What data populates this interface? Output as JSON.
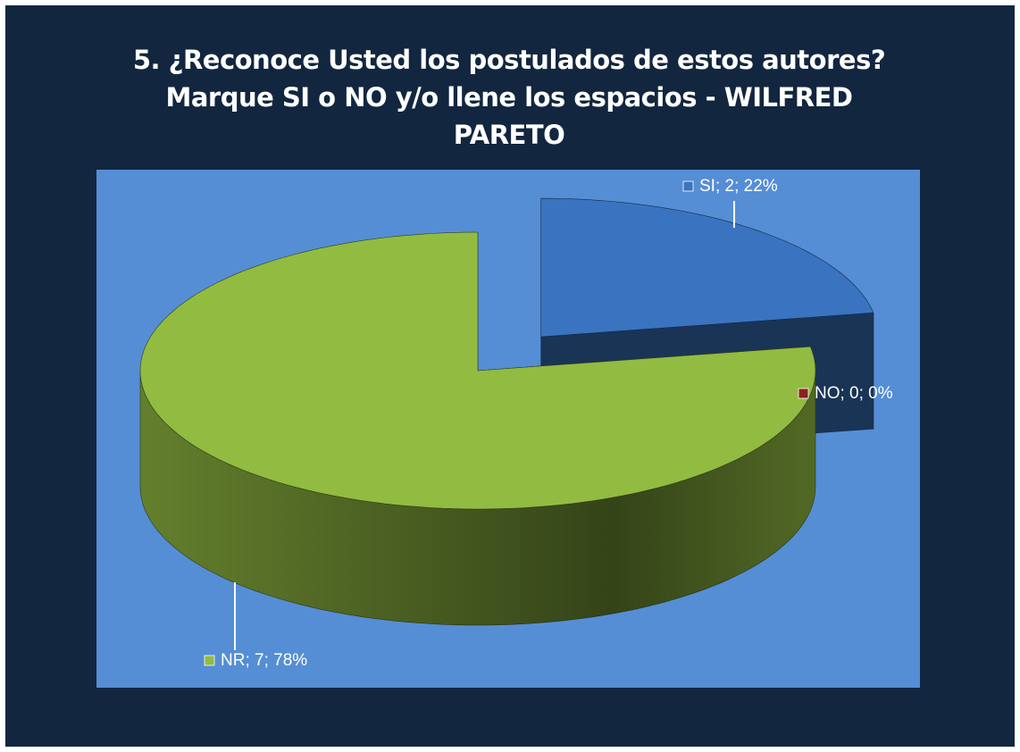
{
  "chart_data": {
    "type": "pie",
    "title": "5. ¿Reconoce Usted los postulados de estos autores?  Marque SI o NO  y/o llene los espacios - WILFRED   PARETO",
    "categories": [
      "SI",
      "NO",
      "NR"
    ],
    "values": [
      2,
      0,
      7
    ],
    "value_labels": [
      "SI; 2; 22%",
      "NO; 0; 0%",
      "NR; 7; 78%"
    ],
    "colors": [
      "#3a74c0",
      "#8b2020",
      "#92bb42"
    ],
    "three_d": true
  }
}
